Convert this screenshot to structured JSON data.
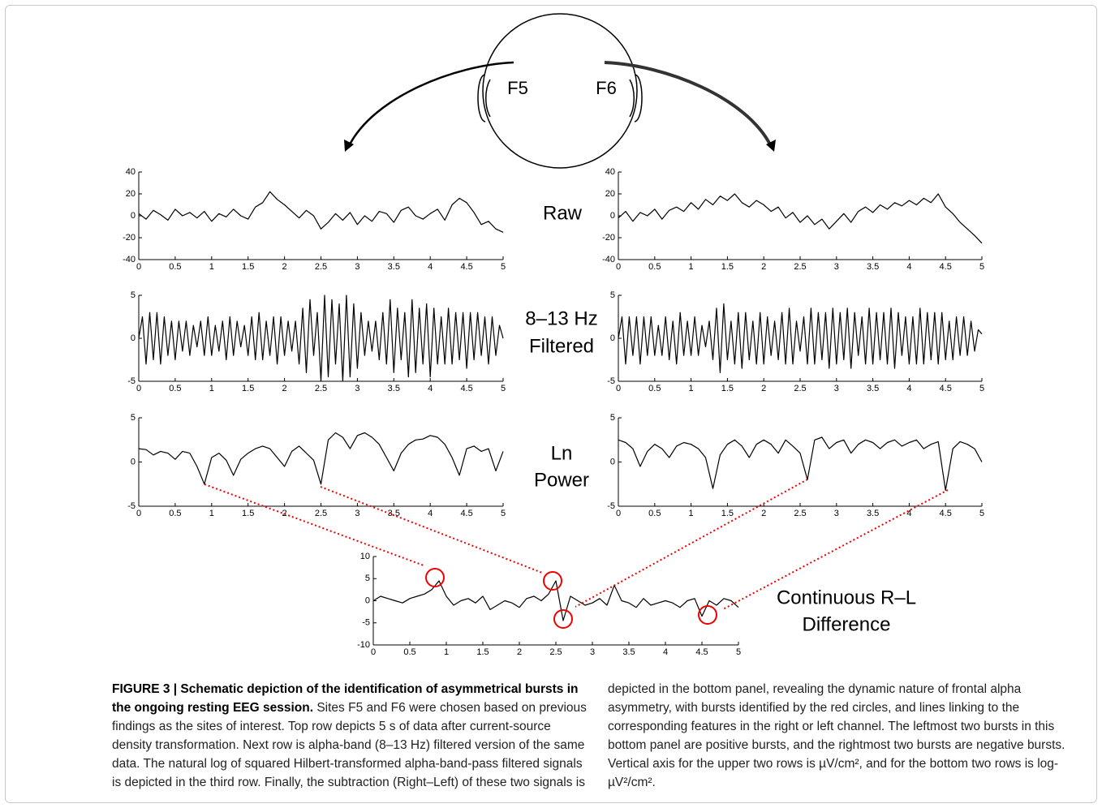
{
  "chart_data": [
    {
      "type": "line",
      "color": "#000",
      "xlim": [
        0,
        5
      ],
      "xticks": [
        0,
        0.5,
        1,
        1.5,
        2,
        2.5,
        3,
        3.5,
        4,
        4.5,
        5
      ],
      "ylim": [
        -40,
        40
      ],
      "yticks": [
        -40,
        -20,
        0,
        20,
        40
      ],
      "x": [
        0,
        0.1,
        0.2,
        0.3,
        0.4,
        0.5,
        0.6,
        0.7,
        0.8,
        0.9,
        1,
        1.1,
        1.2,
        1.3,
        1.4,
        1.5,
        1.6,
        1.7,
        1.8,
        1.9,
        2,
        2.1,
        2.2,
        2.3,
        2.4,
        2.5,
        2.6,
        2.7,
        2.8,
        2.9,
        3,
        3.1,
        3.2,
        3.3,
        3.4,
        3.5,
        3.6,
        3.7,
        3.8,
        3.9,
        4,
        4.1,
        4.2,
        4.3,
        4.4,
        4.5,
        4.6,
        4.7,
        4.8,
        4.9,
        5
      ],
      "values": [
        2,
        -3,
        5,
        1,
        -4,
        6,
        0,
        3,
        -2,
        4,
        -5,
        2,
        -1,
        6,
        0,
        -3,
        8,
        12,
        22,
        15,
        10,
        4,
        -2,
        5,
        0,
        -12,
        -6,
        2,
        -4,
        3,
        -8,
        0,
        -5,
        4,
        2,
        -6,
        5,
        8,
        0,
        -3,
        2,
        6,
        -4,
        10,
        16,
        12,
        3,
        -8,
        -5,
        -12,
        -15
      ]
    },
    {
      "type": "line",
      "color": "#000",
      "xlim": [
        0,
        5
      ],
      "xticks": [
        0,
        0.5,
        1,
        1.5,
        2,
        2.5,
        3,
        3.5,
        4,
        4.5,
        5
      ],
      "ylim": [
        -40,
        40
      ],
      "yticks": [
        -40,
        -20,
        0,
        20,
        40
      ],
      "x": [
        0,
        0.1,
        0.2,
        0.3,
        0.4,
        0.5,
        0.6,
        0.7,
        0.8,
        0.9,
        1,
        1.1,
        1.2,
        1.3,
        1.4,
        1.5,
        1.6,
        1.7,
        1.8,
        1.9,
        2,
        2.1,
        2.2,
        2.3,
        2.4,
        2.5,
        2.6,
        2.7,
        2.8,
        2.9,
        3,
        3.1,
        3.2,
        3.3,
        3.4,
        3.5,
        3.6,
        3.7,
        3.8,
        3.9,
        4,
        4.1,
        4.2,
        4.3,
        4.4,
        4.5,
        4.6,
        4.7,
        4.8,
        4.9,
        5
      ],
      "values": [
        -2,
        4,
        -5,
        3,
        0,
        6,
        -3,
        5,
        8,
        4,
        12,
        6,
        15,
        10,
        18,
        14,
        20,
        12,
        8,
        14,
        10,
        4,
        8,
        -2,
        3,
        -6,
        0,
        -8,
        -3,
        -12,
        -5,
        2,
        -6,
        4,
        8,
        3,
        10,
        6,
        12,
        9,
        14,
        10,
        16,
        12,
        20,
        8,
        2,
        -6,
        -12,
        -18,
        -25
      ]
    },
    {
      "type": "line",
      "color": "#000",
      "xlim": [
        0,
        5
      ],
      "xticks": [
        0,
        0.5,
        1,
        1.5,
        2,
        2.5,
        3,
        3.5,
        4,
        4.5,
        5
      ],
      "ylim": [
        -5,
        5
      ],
      "yticks": [
        -5,
        0,
        5
      ],
      "x": [
        0,
        0.05,
        0.1,
        0.15,
        0.2,
        0.25,
        0.3,
        0.35,
        0.4,
        0.45,
        0.5,
        0.55,
        0.6,
        0.65,
        0.7,
        0.75,
        0.8,
        0.85,
        0.9,
        0.95,
        1,
        1.05,
        1.1,
        1.15,
        1.2,
        1.25,
        1.3,
        1.35,
        1.4,
        1.45,
        1.5,
        1.55,
        1.6,
        1.65,
        1.7,
        1.75,
        1.8,
        1.85,
        1.9,
        1.95,
        2,
        2.05,
        2.1,
        2.15,
        2.2,
        2.25,
        2.3,
        2.35,
        2.4,
        2.45,
        2.5,
        2.55,
        2.6,
        2.65,
        2.7,
        2.75,
        2.8,
        2.85,
        2.9,
        2.95,
        3,
        3.05,
        3.1,
        3.15,
        3.2,
        3.25,
        3.3,
        3.35,
        3.4,
        3.45,
        3.5,
        3.55,
        3.6,
        3.65,
        3.7,
        3.75,
        3.8,
        3.85,
        3.9,
        3.95,
        4,
        4.05,
        4.1,
        4.15,
        4.2,
        4.25,
        4.3,
        4.35,
        4.4,
        4.45,
        4.5,
        4.55,
        4.6,
        4.65,
        4.7,
        4.75,
        4.8,
        4.85,
        4.9,
        4.95,
        5
      ],
      "values": [
        0,
        2.5,
        -3,
        3,
        -2.5,
        3,
        -3,
        2.5,
        -2,
        2,
        -2.5,
        2,
        -1.5,
        2,
        -2,
        1.5,
        -1,
        2,
        -2,
        2.5,
        -2,
        1.5,
        -1.5,
        2,
        -2.5,
        2.5,
        -2,
        2,
        -1,
        1.5,
        -2,
        2.5,
        -2.5,
        3,
        -2.5,
        2,
        -2,
        2.5,
        -3,
        2.5,
        -2,
        2,
        -1.5,
        2,
        -3,
        3.5,
        -4,
        4.5,
        -2,
        3,
        -5,
        5,
        -4.5,
        4.5,
        -3,
        4,
        -5,
        5,
        -4.5,
        4,
        -3.5,
        3,
        -2,
        2,
        -1.5,
        2,
        -2.5,
        3,
        -3,
        4.5,
        -4,
        3.5,
        -2.5,
        3,
        -4.5,
        4.5,
        -4,
        3.5,
        -3,
        4,
        -4.5,
        3.5,
        -3,
        2.5,
        -3,
        3.5,
        -3,
        3,
        -2.5,
        3,
        -3.5,
        3,
        -2.5,
        3,
        -2,
        2.5,
        -3,
        2.5,
        -2,
        1.5,
        0
      ]
    },
    {
      "type": "line",
      "color": "#000",
      "xlim": [
        0,
        5
      ],
      "xticks": [
        0,
        0.5,
        1,
        1.5,
        2,
        2.5,
        3,
        3.5,
        4,
        4.5,
        5
      ],
      "ylim": [
        -5,
        5
      ],
      "yticks": [
        -5,
        0,
        5
      ],
      "x": [
        0,
        0.05,
        0.1,
        0.15,
        0.2,
        0.25,
        0.3,
        0.35,
        0.4,
        0.45,
        0.5,
        0.55,
        0.6,
        0.65,
        0.7,
        0.75,
        0.8,
        0.85,
        0.9,
        0.95,
        1,
        1.05,
        1.1,
        1.15,
        1.2,
        1.25,
        1.3,
        1.35,
        1.4,
        1.45,
        1.5,
        1.55,
        1.6,
        1.65,
        1.7,
        1.75,
        1.8,
        1.85,
        1.9,
        1.95,
        2,
        2.05,
        2.1,
        2.15,
        2.2,
        2.25,
        2.3,
        2.35,
        2.4,
        2.45,
        2.5,
        2.55,
        2.6,
        2.65,
        2.7,
        2.75,
        2.8,
        2.85,
        2.9,
        2.95,
        3,
        3.05,
        3.1,
        3.15,
        3.2,
        3.25,
        3.3,
        3.35,
        3.4,
        3.45,
        3.5,
        3.55,
        3.6,
        3.65,
        3.7,
        3.75,
        3.8,
        3.85,
        3.9,
        3.95,
        4,
        4.05,
        4.1,
        4.15,
        4.2,
        4.25,
        4.3,
        4.35,
        4.4,
        4.45,
        4.5,
        4.55,
        4.6,
        4.65,
        4.7,
        4.75,
        4.8,
        4.85,
        4.9,
        4.95,
        5
      ],
      "values": [
        0,
        2.5,
        -3,
        2.5,
        -2,
        2.5,
        -3,
        2.5,
        -2,
        2.5,
        -2,
        1.5,
        -2,
        2.5,
        -2.5,
        2,
        -3,
        3,
        -2,
        2,
        -2,
        2.5,
        -2,
        1.5,
        -1,
        2,
        -2.5,
        3.5,
        -4,
        4,
        -2.5,
        2,
        -3,
        3,
        -3.5,
        3,
        -2.5,
        2,
        -3,
        3,
        -3,
        2.5,
        -2,
        2,
        -2.5,
        3,
        -3,
        3.5,
        -3,
        2,
        -1.5,
        2.5,
        -3,
        3.5,
        -3,
        3,
        -2.5,
        3,
        -3.5,
        3.5,
        -3,
        3,
        -2.5,
        3.5,
        -3.5,
        3,
        -2,
        2.5,
        -3,
        3.5,
        -3,
        3,
        -2.5,
        3,
        -3,
        3.5,
        -3.5,
        3,
        -2,
        2.5,
        -3,
        2.5,
        -3,
        3.5,
        -3,
        3,
        -2.5,
        3,
        -3,
        3,
        -2.5,
        2,
        -2.5,
        2.5,
        -2,
        2.5,
        -2,
        2,
        -1.5,
        1,
        0.5
      ]
    },
    {
      "type": "line",
      "color": "#000",
      "xlim": [
        0,
        5
      ],
      "xticks": [
        0,
        0.5,
        1,
        1.5,
        2,
        2.5,
        3,
        3.5,
        4,
        4.5,
        5
      ],
      "ylim": [
        -5,
        5
      ],
      "yticks": [
        -5,
        0,
        5
      ],
      "x": [
        0,
        0.1,
        0.2,
        0.3,
        0.4,
        0.5,
        0.6,
        0.7,
        0.8,
        0.9,
        1,
        1.1,
        1.2,
        1.3,
        1.4,
        1.5,
        1.6,
        1.7,
        1.8,
        1.9,
        2,
        2.1,
        2.2,
        2.3,
        2.4,
        2.5,
        2.6,
        2.7,
        2.8,
        2.9,
        3,
        3.1,
        3.2,
        3.3,
        3.4,
        3.5,
        3.6,
        3.7,
        3.8,
        3.9,
        4,
        4.1,
        4.2,
        4.3,
        4.4,
        4.5,
        4.6,
        4.7,
        4.8,
        4.9,
        5
      ],
      "values": [
        1.5,
        1.4,
        0.8,
        1.2,
        1.0,
        0.3,
        1.2,
        1.0,
        -0.5,
        -2.5,
        0.5,
        1.0,
        0.2,
        -1.5,
        0.3,
        1.0,
        1.5,
        1.8,
        1.5,
        0.5,
        -0.5,
        1.2,
        1.8,
        1.0,
        0.2,
        -2.5,
        2.5,
        3.3,
        2.8,
        1.5,
        3.0,
        3.3,
        2.8,
        2.0,
        0.5,
        -1.0,
        1.0,
        2.0,
        2.5,
        2.6,
        3.0,
        2.8,
        2.0,
        0.5,
        -1.5,
        1.5,
        1.8,
        1.2,
        1.5,
        -1.0,
        1.2
      ]
    },
    {
      "type": "line",
      "color": "#000",
      "xlim": [
        0,
        5
      ],
      "xticks": [
        0,
        0.5,
        1,
        1.5,
        2,
        2.5,
        3,
        3.5,
        4,
        4.5,
        5
      ],
      "ylim": [
        -5,
        5
      ],
      "yticks": [
        -5,
        0,
        5
      ],
      "x": [
        0,
        0.1,
        0.2,
        0.3,
        0.4,
        0.5,
        0.6,
        0.7,
        0.8,
        0.9,
        1,
        1.1,
        1.2,
        1.3,
        1.4,
        1.5,
        1.6,
        1.7,
        1.8,
        1.9,
        2,
        2.1,
        2.2,
        2.3,
        2.4,
        2.5,
        2.6,
        2.7,
        2.8,
        2.9,
        3,
        3.1,
        3.2,
        3.3,
        3.4,
        3.5,
        3.6,
        3.7,
        3.8,
        3.9,
        4,
        4.1,
        4.2,
        4.3,
        4.4,
        4.5,
        4.6,
        4.7,
        4.8,
        4.9,
        5
      ],
      "values": [
        2.5,
        2.2,
        1.5,
        -0.5,
        1.2,
        2.0,
        1.5,
        0.5,
        1.8,
        2.2,
        2.0,
        1.5,
        0.5,
        -3.0,
        0.8,
        2.0,
        2.5,
        1.8,
        0.5,
        2.0,
        2.5,
        2.0,
        1.0,
        2.5,
        1.8,
        1.0,
        -2.0,
        2.5,
        2.8,
        1.5,
        2.2,
        2.5,
        1.0,
        2.0,
        2.5,
        2.2,
        1.5,
        2.2,
        2.5,
        1.8,
        2.2,
        2.5,
        1.5,
        2.0,
        2.3,
        -3.2,
        1.5,
        2.3,
        2.0,
        1.5,
        0
      ]
    },
    {
      "type": "line",
      "color": "#000",
      "xlim": [
        0,
        5
      ],
      "xticks": [
        0,
        0.5,
        1,
        1.5,
        2,
        2.5,
        3,
        3.5,
        4,
        4.5,
        5
      ],
      "ylim": [
        -10,
        10
      ],
      "yticks": [
        -10,
        -5,
        0,
        5,
        10
      ],
      "x": [
        0,
        0.1,
        0.2,
        0.3,
        0.4,
        0.5,
        0.6,
        0.7,
        0.8,
        0.9,
        1,
        1.1,
        1.2,
        1.3,
        1.4,
        1.5,
        1.6,
        1.7,
        1.8,
        1.9,
        2,
        2.1,
        2.2,
        2.3,
        2.4,
        2.5,
        2.6,
        2.7,
        2.8,
        2.9,
        3,
        3.1,
        3.2,
        3.3,
        3.4,
        3.5,
        3.6,
        3.7,
        3.8,
        3.9,
        4,
        4.1,
        4.2,
        4.3,
        4.4,
        4.5,
        4.6,
        4.7,
        4.8,
        4.9,
        5
      ],
      "values": [
        0,
        1,
        0.5,
        0,
        -0.5,
        0.5,
        1.0,
        1.5,
        2.5,
        4.5,
        1.0,
        -1.0,
        0,
        0.5,
        -0.5,
        1.0,
        -2.0,
        -1.0,
        0,
        -0.5,
        -1.5,
        0.5,
        1.0,
        0,
        1.5,
        4.5,
        -4.5,
        1.0,
        0,
        -1.0,
        -0.5,
        0.5,
        -1.0,
        3.5,
        0,
        -0.5,
        -1.5,
        0.5,
        -1.0,
        -0.5,
        0,
        -0.5,
        -1.5,
        0,
        0.5,
        -3.5,
        0,
        -1.0,
        0.5,
        0,
        -1.5
      ]
    }
  ],
  "head": {
    "left_site": "F5",
    "right_site": "F6"
  },
  "row_labels": {
    "raw": "Raw",
    "filtered": [
      "8–13 Hz",
      "Filtered"
    ],
    "power": [
      "Ln",
      "Power"
    ],
    "difference": [
      "Continuous R–L",
      "Difference"
    ]
  },
  "caption": {
    "title": "FIGURE 3 | Schematic depiction of the identification of asymmetrical bursts in the ongoing resting EEG session.",
    "text": "Sites F5 and F6 were chosen based on previous findings as the sites of interest. Top row depicts 5 s of data after current-source density transformation. Next row is alpha-band (8–13 Hz) filtered version of the same data. The natural log of squared Hilbert-transformed alpha-band-pass filtered signals is depicted in the third row. Finally, the subtraction (Right–Left) of these two signals is depicted in the bottom panel, revealing the dynamic nature of frontal alpha asymmetry, with bursts identified by the red circles, and lines linking to the corresponding features in the right or left channel. The leftmost two bursts in this bottom panel are positive bursts, and the rightmost two bursts are negative bursts. Vertical axis for the upper two rows is µV/cm², and for the bottom two rows is log-µV²/cm²."
  }
}
